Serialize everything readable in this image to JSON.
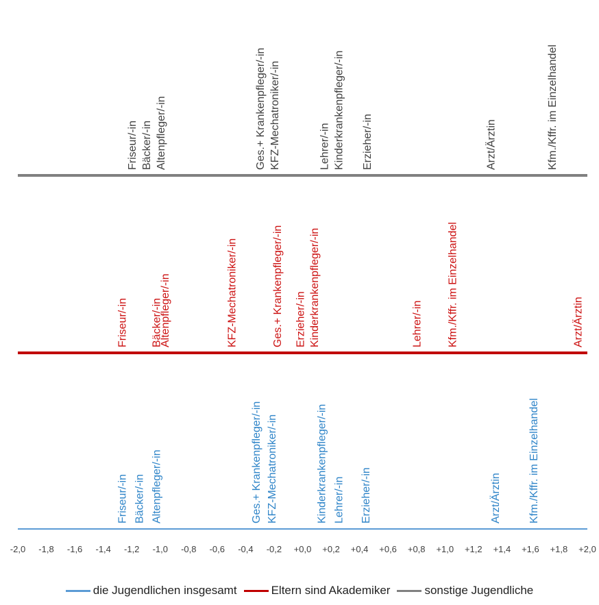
{
  "chart_data": {
    "type": "scatter",
    "xlim": [
      -2.0,
      2.0
    ],
    "x_ticks": [
      -2.0,
      -1.8,
      -1.6,
      -1.4,
      -1.2,
      -1.0,
      -0.8,
      -0.6,
      -0.4,
      -0.2,
      0.0,
      0.2,
      0.4,
      0.6,
      0.8,
      1.0,
      1.2,
      1.4,
      1.6,
      1.8,
      2.0
    ],
    "x_tick_labels": [
      "-2,0",
      "-1,8",
      "-1,6",
      "-1,4",
      "-1,2",
      "-1,0",
      "-0,8",
      "-0,6",
      "-0,4",
      "-0,2",
      "+0,0",
      "+0,2",
      "+0,4",
      "+0,6",
      "+0,8",
      "+1,0",
      "+1,2",
      "+1,4",
      "+1,6",
      "+1,8",
      "+2,0"
    ],
    "legend_position": "bottom",
    "series": [
      {
        "name": "die Jugendlichen insgesamt",
        "color": "#5b9bd5",
        "text_color": "#2e84c8",
        "points": [
          {
            "label": "Friseur/-in",
            "x": -1.27
          },
          {
            "label": "Bäcker/-in",
            "x": -1.15
          },
          {
            "label": "Altenpfleger/-in",
            "x": -1.03
          },
          {
            "label": "Ges.+ Krankenpfleger/-in",
            "x": -0.33
          },
          {
            "label": "KFZ-Mechatroniker/-in",
            "x": -0.22
          },
          {
            "label": "Kinderkrankenpfleger/-in",
            "x": 0.13
          },
          {
            "label": "Lehrer/-in",
            "x": 0.25
          },
          {
            "label": "Erzieher/-in",
            "x": 0.44
          },
          {
            "label": "Arzt/Ärztin",
            "x": 1.35
          },
          {
            "label": "Kfm./Kffr. im Einzelhandel",
            "x": 1.62
          }
        ]
      },
      {
        "name": "Eltern sind Akademiker",
        "color": "#c00000",
        "text_color": "#cc1111",
        "points": [
          {
            "label": "Friseur/-in",
            "x": -1.27
          },
          {
            "label": "Bäcker/-in",
            "x": -1.03
          },
          {
            "label": "Altenpfleger/-in",
            "x": -0.97
          },
          {
            "label": "KFZ-Mechatroniker/-in",
            "x": -0.5
          },
          {
            "label": "Ges.+ Krankenpfleger/-in",
            "x": -0.18
          },
          {
            "label": "Erzieher/-in",
            "x": -0.02
          },
          {
            "label": "Kinderkrankenpfleger/-in",
            "x": 0.08
          },
          {
            "label": "Lehrer/-in",
            "x": 0.8
          },
          {
            "label": "Kfm./Kffr. im Einzelhandel",
            "x": 1.05
          },
          {
            "label": "Arzt/Ärztin",
            "x": 1.93
          }
        ]
      },
      {
        "name": "sonstige Jugendliche",
        "color": "#808080",
        "text_color": "#404040",
        "points": [
          {
            "label": "Friseur/-in",
            "x": -1.2
          },
          {
            "label": "Bäcker/-in",
            "x": -1.1
          },
          {
            "label": "Altenpfleger/-in",
            "x": -1.0
          },
          {
            "label": "Ges.+ Krankenpfleger/-in",
            "x": -0.3
          },
          {
            "label": "KFZ-Mechatroniker/-in",
            "x": -0.2
          },
          {
            "label": "Lehrer/-in",
            "x": 0.15
          },
          {
            "label": "Kinderkrankenpfleger/-in",
            "x": 0.25
          },
          {
            "label": "Erzieher/-in",
            "x": 0.45
          },
          {
            "label": "Arzt/Ärztin",
            "x": 1.32
          },
          {
            "label": "Kfm./Kffr. im Einzelhandel",
            "x": 1.75
          }
        ]
      }
    ]
  },
  "legend": {
    "items": [
      {
        "label": "die Jugendlichen insgesamt",
        "color": "#5b9bd5"
      },
      {
        "label": "Eltern sind Akademiker",
        "color": "#c00000"
      },
      {
        "label": "sonstige Jugendliche",
        "color": "#808080"
      }
    ]
  }
}
